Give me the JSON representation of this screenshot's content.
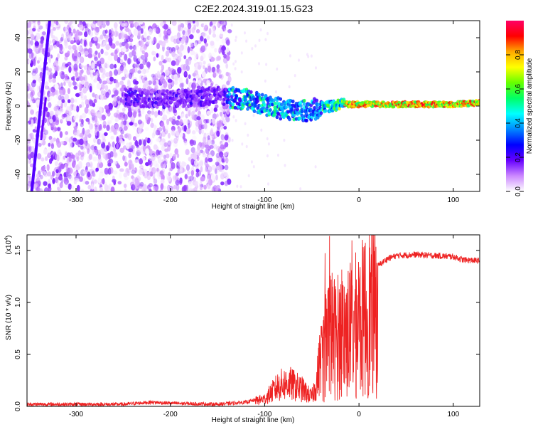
{
  "title": "C2E2.2024.319.01.15.G23",
  "chart_data": [
    {
      "type": "heatmap",
      "xlabel": "Height of straight line (km)",
      "ylabel": "Frequency (Hz)",
      "xlim": [
        -352,
        128
      ],
      "ylim": [
        -50,
        50
      ],
      "xticks": [
        -300,
        -200,
        -100,
        0,
        100
      ],
      "yticks": [
        -40,
        -20,
        0,
        20,
        40
      ],
      "grid": false,
      "colorbar": {
        "label": "Normalized spectral amplitude",
        "range": [
          0,
          1
        ],
        "ticks": [
          0.0,
          0.2,
          0.4,
          0.6,
          0.8
        ],
        "colormap": [
          "#ffffff",
          "#cc88ff",
          "#6600ff",
          "#0000ff",
          "#0088ff",
          "#00ffff",
          "#00ff66",
          "#66ff00",
          "#ffff00",
          "#ffaa00",
          "#ff0000",
          "#ff0066"
        ]
      },
      "ridge": {
        "x": [
          -250,
          -200,
          -150,
          -120,
          -100,
          -80,
          -60,
          -40,
          -20,
          0,
          50,
          100,
          128
        ],
        "y": [
          5,
          4,
          6,
          4,
          1,
          -2,
          -3,
          -1,
          1,
          1,
          1,
          1,
          2
        ]
      }
    },
    {
      "type": "line",
      "xlabel": "Height of straight line (km)",
      "ylabel": "SNR (10 * v/v)",
      "yexponent": "(x10",
      "yexponent_power": "4",
      "yexponent_close": ")",
      "xlim": [
        -352,
        128
      ],
      "ylim": [
        0,
        1.65
      ],
      "xticks": [
        -300,
        -200,
        -100,
        0,
        100
      ],
      "yticks": [
        0.0,
        0.5,
        1.0,
        1.5
      ],
      "grid": false,
      "series": [
        {
          "color": "#ee2222",
          "x": [
            -352,
            -300,
            -250,
            -220,
            -200,
            -150,
            -120,
            -100,
            -85,
            -75,
            -60,
            -50,
            -45,
            -38,
            -32,
            -25,
            -20,
            -10,
            0,
            10,
            20,
            30,
            40,
            60,
            80,
            100,
            110,
            128
          ],
          "y": [
            0.02,
            0.02,
            0.02,
            0.04,
            0.03,
            0.02,
            0.04,
            0.08,
            0.22,
            0.25,
            0.18,
            0.1,
            0.25,
            0.7,
            1.0,
            0.9,
            0.95,
            1.0,
            1.1,
            1.25,
            1.35,
            1.42,
            1.45,
            1.46,
            1.45,
            1.44,
            1.41,
            1.4
          ]
        }
      ]
    }
  ]
}
